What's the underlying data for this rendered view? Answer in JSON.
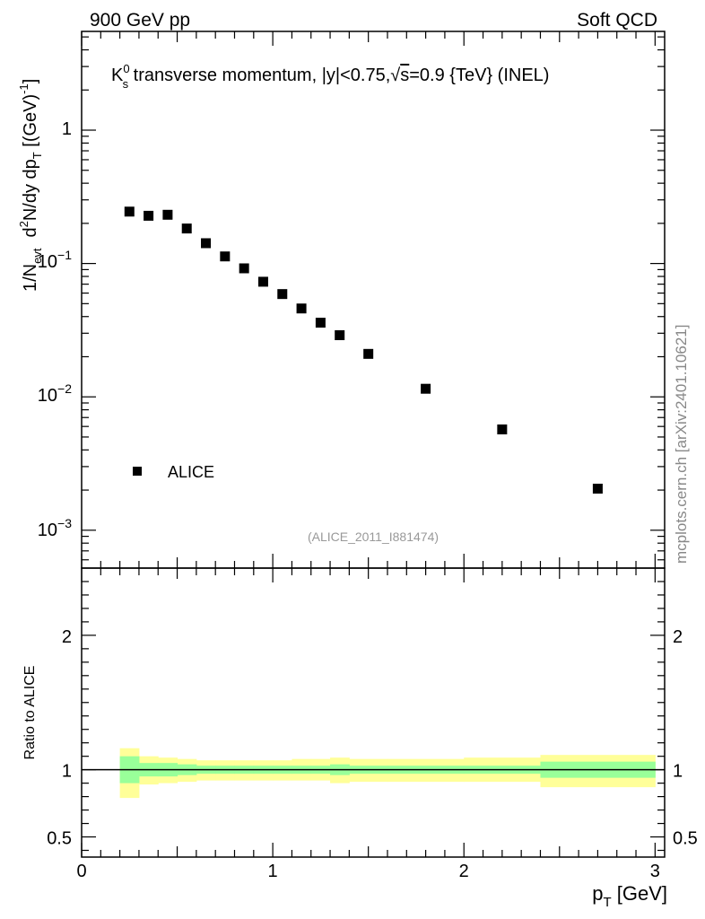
{
  "header": {
    "left": "900 GeV pp",
    "right": "Soft QCD"
  },
  "watermark": {
    "side": "mcplots.cern.ch [arXiv:2401.10621]",
    "analysis": "(ALICE_2011_I881474)"
  },
  "chart_data": [
    {
      "type": "scatter",
      "panel": "main",
      "title": {
        "k": "K",
        "k_sup": "0",
        "k_sub": "s",
        "rest": " transverse momentum, |y|<0.75,",
        "sqrt": "√",
        "s": "s",
        "energy": "=0.9 {TeV} (INEL)"
      },
      "ylabel": {
        "part1": "1/N",
        "part1_sub": "evt",
        "part2": "d",
        "part2_sup": "2",
        "part3": "N/dy dp",
        "part3_sub": "T",
        "part4": " [(GeV)",
        "part4_sup": "-1",
        "part5": "]"
      },
      "yscale": "log",
      "ylim": [
        0.00052,
        5.5
      ],
      "xlim": [
        0,
        3.05
      ],
      "ytick_labels": [
        {
          "value": 1,
          "base": "1",
          "exp": ""
        },
        {
          "value": 0.1,
          "base": "10",
          "exp": "−1"
        },
        {
          "value": 0.01,
          "base": "10",
          "exp": "−2"
        },
        {
          "value": 0.001,
          "base": "10",
          "exp": "−3"
        }
      ],
      "legend": {
        "label": "ALICE",
        "placement": "bottom-left",
        "marker": "filled-square"
      },
      "series": [
        {
          "name": "ALICE",
          "marker": "filled-square",
          "x": [
            0.25,
            0.35,
            0.45,
            0.55,
            0.65,
            0.75,
            0.85,
            0.95,
            1.05,
            1.15,
            1.25,
            1.35,
            1.5,
            1.8,
            2.2,
            2.7
          ],
          "y": [
            0.245,
            0.228,
            0.232,
            0.183,
            0.142,
            0.113,
            0.092,
            0.073,
            0.059,
            0.046,
            0.036,
            0.029,
            0.021,
            0.0115,
            0.0057,
            0.00205
          ]
        }
      ]
    },
    {
      "type": "area",
      "panel": "ratio",
      "ylabel": "Ratio to ALICE",
      "xlabel": {
        "main": "p",
        "sub": "T",
        "unit": " [GeV]"
      },
      "xlim": [
        0,
        3.05
      ],
      "ylim": [
        0.35,
        2.5
      ],
      "xtick_labels": [
        "0",
        "1",
        "2",
        "3"
      ],
      "xtick_values": [
        0,
        1,
        2,
        3
      ],
      "ytick_labels": [
        "0.5",
        "1",
        "2"
      ],
      "ytick_values": [
        0.5,
        1,
        2
      ],
      "reference_line": 1,
      "bands": {
        "bin_edges": [
          0.2,
          0.3,
          0.4,
          0.5,
          0.6,
          0.7,
          0.8,
          0.9,
          1.0,
          1.1,
          1.2,
          1.3,
          1.4,
          1.6,
          2.0,
          2.4,
          3.0
        ],
        "stat_color": "#99ff99",
        "total_color": "#ffff99",
        "stat_lo": [
          0.9,
          0.95,
          0.95,
          0.96,
          0.97,
          0.97,
          0.97,
          0.97,
          0.97,
          0.97,
          0.97,
          0.96,
          0.97,
          0.97,
          0.97,
          0.94
        ],
        "stat_hi": [
          1.1,
          1.05,
          1.05,
          1.04,
          1.03,
          1.03,
          1.03,
          1.03,
          1.03,
          1.03,
          1.03,
          1.04,
          1.03,
          1.03,
          1.03,
          1.06
        ],
        "total_lo": [
          0.79,
          0.89,
          0.9,
          0.91,
          0.92,
          0.92,
          0.92,
          0.92,
          0.92,
          0.92,
          0.92,
          0.9,
          0.91,
          0.91,
          0.91,
          0.87
        ],
        "total_hi": [
          1.16,
          1.1,
          1.09,
          1.08,
          1.07,
          1.07,
          1.07,
          1.07,
          1.07,
          1.08,
          1.08,
          1.09,
          1.08,
          1.08,
          1.09,
          1.11
        ]
      }
    }
  ]
}
